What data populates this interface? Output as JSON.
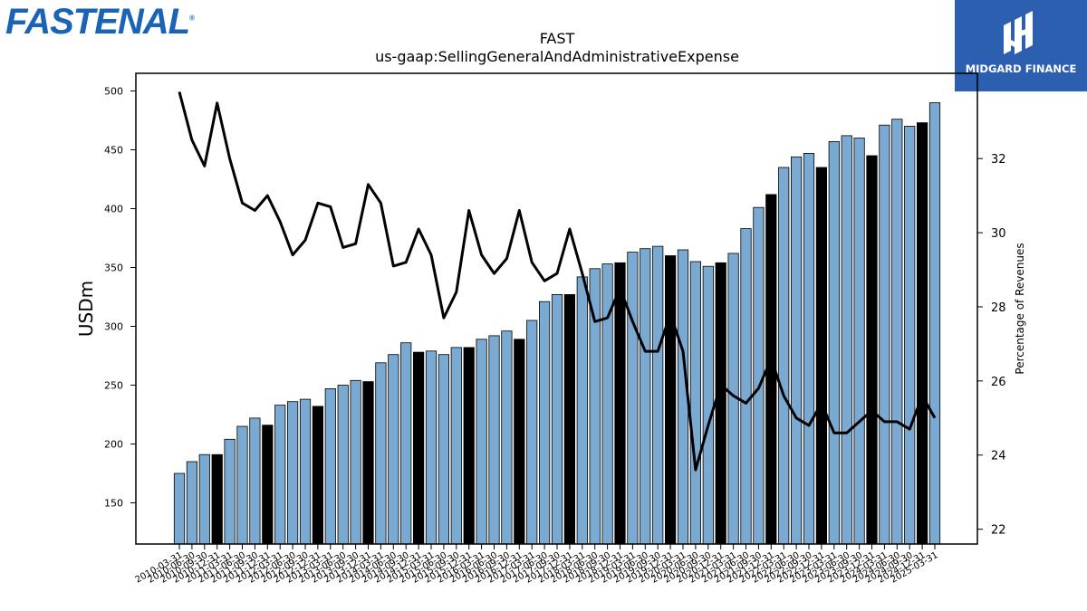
{
  "brand": {
    "logo_text": "FASTENAL",
    "badge_text": "MIDGARD FINANCE",
    "logo_color": "#1a63b5",
    "badge_color": "#2d5fb0"
  },
  "chart_data": {
    "type": "bar",
    "title": "FAST",
    "subtitle": "us-gaap:SellingGeneralAndAdministrativeExpense",
    "ylabel": "USDm",
    "y2label": "Percentage of Revenues",
    "ylim": [
      115,
      515
    ],
    "y2lim": [
      21.6,
      34.3
    ],
    "yticks": [
      150,
      200,
      250,
      300,
      350,
      400,
      450,
      500
    ],
    "y2ticks": [
      22,
      24,
      26,
      28,
      30,
      32
    ],
    "bar_color": "#7aaad2",
    "highlight_color": "#000000",
    "line_color": "#000000",
    "categories": [
      "2010-03-31",
      "2010-06-30",
      "2010-09-30",
      "2010-12-31",
      "2011-03-31",
      "2011-06-30",
      "2011-09-30",
      "2011-12-31",
      "2012-03-31",
      "2012-06-30",
      "2012-09-30",
      "2012-12-31",
      "2013-03-31",
      "2013-06-30",
      "2013-09-30",
      "2013-12-31",
      "2014-03-31",
      "2014-06-30",
      "2014-09-30",
      "2014-12-31",
      "2015-03-31",
      "2015-06-30",
      "2015-09-30",
      "2015-12-31",
      "2016-03-31",
      "2016-06-30",
      "2016-09-30",
      "2016-12-31",
      "2017-03-31",
      "2017-06-30",
      "2017-09-30",
      "2017-12-31",
      "2018-03-31",
      "2018-06-30",
      "2018-09-30",
      "2018-12-31",
      "2019-03-31",
      "2019-06-30",
      "2019-09-30",
      "2019-12-31",
      "2020-03-31",
      "2020-06-30",
      "2020-09-30",
      "2020-12-31",
      "2021-03-31",
      "2021-06-30",
      "2021-09-30",
      "2021-12-31",
      "2022-03-31",
      "2022-06-30",
      "2022-09-30",
      "2022-12-31",
      "2023-03-31",
      "2023-06-30",
      "2023-09-30",
      "2023-12-31",
      "2024-03-31",
      "2024-06-30",
      "2024-09-30",
      "2024-12-31",
      "2025-03-31"
    ],
    "series": [
      {
        "type": "bar",
        "values": [
          175,
          185,
          191,
          191,
          204,
          215,
          222,
          216,
          233,
          236,
          238,
          232,
          247,
          250,
          254,
          253,
          269,
          276,
          286,
          278,
          279,
          276,
          282,
          282,
          289,
          292,
          296,
          289,
          305,
          321,
          327,
          327,
          342,
          349,
          353,
          354,
          363,
          366,
          368,
          360,
          365,
          355,
          351,
          354,
          362,
          383,
          401,
          412,
          435,
          444,
          447,
          435,
          457,
          462,
          460,
          445,
          471,
          476,
          470,
          473,
          490
        ]
      },
      {
        "type": "line",
        "values": [
          33.8,
          32.5,
          31.8,
          33.5,
          32.0,
          30.8,
          30.6,
          31.0,
          30.3,
          29.4,
          29.8,
          30.8,
          30.7,
          29.6,
          29.7,
          31.3,
          30.8,
          29.1,
          29.2,
          30.1,
          29.4,
          27.7,
          28.4,
          30.6,
          29.4,
          28.9,
          29.3,
          30.6,
          29.2,
          28.7,
          28.9,
          30.1,
          28.9,
          27.6,
          27.7,
          28.5,
          27.6,
          26.8,
          26.8,
          27.8,
          26.8,
          23.6,
          24.8,
          25.9,
          25.6,
          25.4,
          25.8,
          26.6,
          25.6,
          25.0,
          24.8,
          25.4,
          24.6,
          24.6,
          24.9,
          25.2,
          24.9,
          24.9,
          24.7,
          25.6,
          25.0
        ]
      }
    ],
    "highlight_every": 4,
    "highlight_offset": 3
  }
}
